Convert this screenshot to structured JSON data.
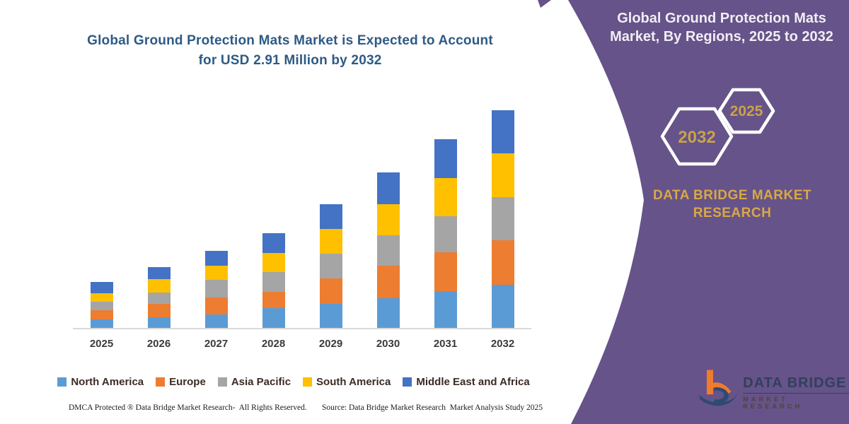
{
  "theme": {
    "purple": "#655389",
    "gold": "#c9a24b",
    "brand_gold": "#d9a845",
    "title_blue": "#2e5a85",
    "axis_gray": "#d9d9d9",
    "label_dark": "#3a3a3a",
    "legend_text": "#3b2b23",
    "logo_navy": "#333f5c",
    "logo_orange": "#ee7b2e"
  },
  "chart": {
    "title_line1": "Global Ground Protection Mats Market is Expected to Account",
    "title_line2": "for USD 2.91 Million by 2032"
  },
  "chart_data": {
    "type": "bar",
    "stacked": true,
    "title": "Global Ground Protection Mats Market is Expected to Account for USD 2.91 Million by 2032",
    "xlabel": "",
    "ylabel": "",
    "value_unit": "USD Million",
    "value_axis_visible": false,
    "grid": false,
    "legend_position": "bottom",
    "categories": [
      "2025",
      "2026",
      "2027",
      "2028",
      "2029",
      "2030",
      "2031",
      "2032"
    ],
    "series": [
      {
        "name": "North America",
        "color": "#5b9bd5",
        "values": [
          0.12,
          0.15,
          0.19,
          0.27,
          0.33,
          0.41,
          0.5,
          0.58
        ]
      },
      {
        "name": "Europe",
        "color": "#ed7d31",
        "values": [
          0.13,
          0.18,
          0.22,
          0.22,
          0.34,
          0.43,
          0.52,
          0.6
        ]
      },
      {
        "name": "Asia Pacific",
        "color": "#a5a5a5",
        "values": [
          0.11,
          0.15,
          0.24,
          0.26,
          0.33,
          0.4,
          0.48,
          0.57
        ]
      },
      {
        "name": "South America",
        "color": "#ffc000",
        "values": [
          0.11,
          0.18,
          0.19,
          0.26,
          0.33,
          0.42,
          0.51,
          0.59
        ]
      },
      {
        "name": "Middle East and Africa",
        "color": "#4472c4",
        "values": [
          0.15,
          0.16,
          0.2,
          0.26,
          0.33,
          0.42,
          0.51,
          0.57
        ]
      }
    ],
    "totals_note": "2032 stack totals USD 2.91 Million per title"
  },
  "panel": {
    "title_line1": "Global Ground Protection Mats",
    "title_line2": "Market, By Regions, 2025 to 2032",
    "hex_left_year": "2032",
    "hex_right_year": "2025",
    "brand_line1": "DATA BRIDGE MARKET",
    "brand_line2": "RESEARCH"
  },
  "logo": {
    "name_line": "DATA BRIDGE",
    "sub_line": "MARKET RESEARCH"
  },
  "footer": {
    "left": "DMCA Protected ® Data Bridge Market Research-  All Rights Reserved.",
    "right": "Source: Data Bridge Market Research  Market Analysis Study 2025"
  }
}
